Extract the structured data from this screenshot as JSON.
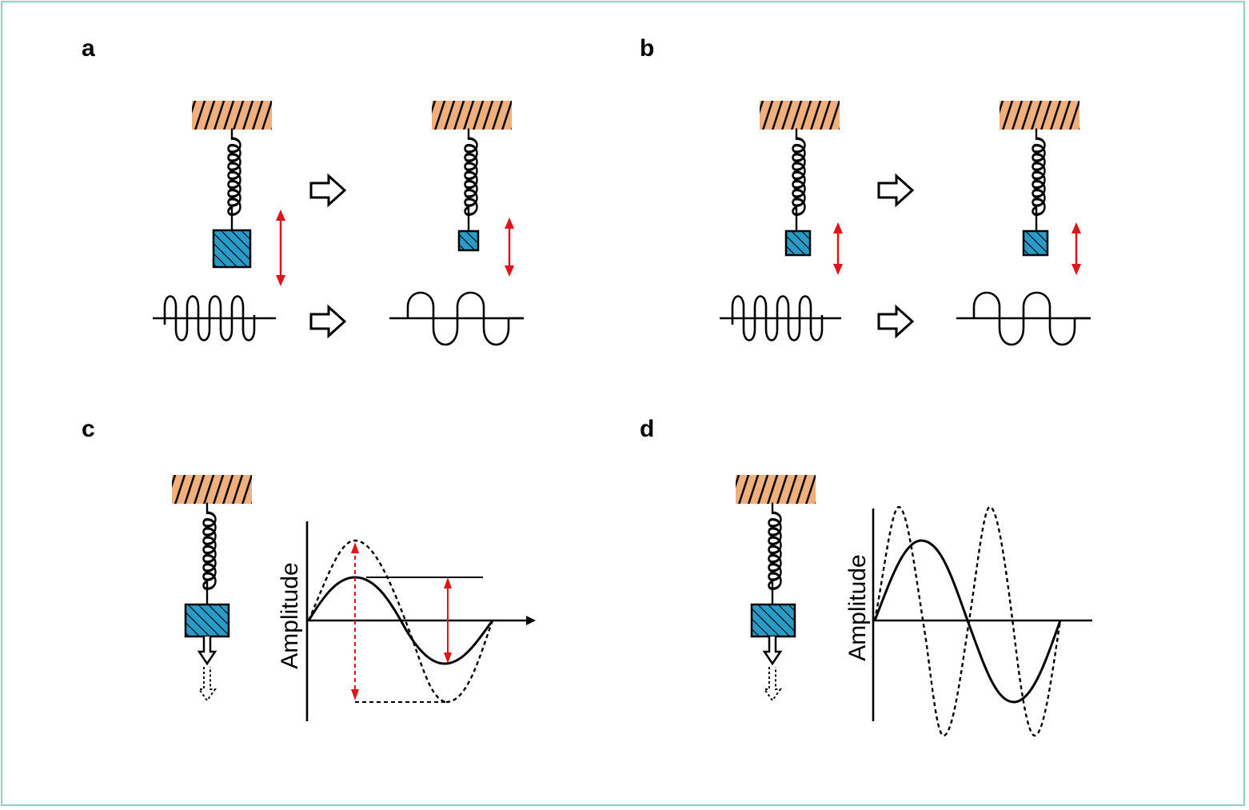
{
  "panels": {
    "a": {
      "label": "a"
    },
    "b": {
      "label": "b"
    },
    "c": {
      "label": "c",
      "ylabel": "Amplitude"
    },
    "d": {
      "label": "d",
      "ylabel": "Amplitude"
    }
  },
  "colors": {
    "ceiling": "#f0b07e",
    "mass": "#2a9bc7",
    "arrow_red": "#e0141b",
    "frame": "#8fcfc4",
    "stroke": "#000000"
  },
  "icons": [
    "hatched-ceiling-icon",
    "spring-icon",
    "hatched-mass-icon",
    "outline-arrow-icon",
    "double-headed-red-arrow-icon",
    "sine-wave-icon"
  ]
}
